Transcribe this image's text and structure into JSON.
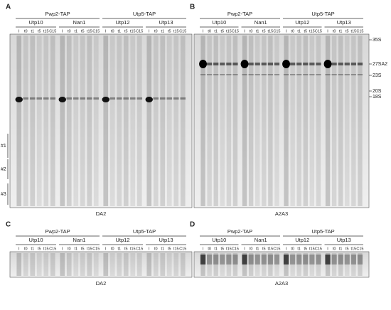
{
  "panels": [
    {
      "letter": "A",
      "groups": [
        "Pwp2-TAP",
        "Utp5-TAP"
      ],
      "subgroups": [
        {
          "name": "Utp10",
          "lanes": [
            "I",
            "t0",
            "t1",
            "t5",
            "t15",
            "C15"
          ]
        },
        {
          "name": "Nan1",
          "lanes": [
            "I",
            "t0",
            "t1",
            "t5",
            "t15",
            "C15"
          ]
        },
        {
          "name": "Utp12",
          "lanes": [
            "I",
            "t0",
            "t1",
            "t5",
            "t15",
            "C15"
          ]
        },
        {
          "name": "Utp13",
          "lanes": [
            "I",
            "t0",
            "t1",
            "t5",
            "t15",
            "C15"
          ]
        }
      ],
      "caption": "DA2",
      "side_labels": [
        "#1",
        "#2",
        "#3"
      ]
    },
    {
      "letter": "B",
      "groups": [
        "Pwp2-TAP",
        "Utp5-TAP"
      ],
      "subgroups": [
        {
          "name": "Utp10",
          "lanes": [
            "I",
            "t0",
            "t1",
            "t5",
            "t15",
            "C15"
          ]
        },
        {
          "name": "Nan1",
          "lanes": [
            "I",
            "t0",
            "t1",
            "t5",
            "t15",
            "C15"
          ]
        },
        {
          "name": "Utp12",
          "lanes": [
            "I",
            "t0",
            "t1",
            "t5",
            "t15",
            "C15"
          ]
        },
        {
          "name": "Utp13",
          "lanes": [
            "I",
            "t0",
            "t1",
            "t5",
            "t15",
            "C15"
          ]
        }
      ],
      "caption": "A2A3",
      "markers": [
        "35S",
        "27SA2",
        "23S",
        "20S",
        "18S"
      ]
    },
    {
      "letter": "C",
      "groups": [
        "Pwp2-TAP",
        "Utp5-TAP"
      ],
      "subgroups": [
        {
          "name": "Utp10",
          "lanes": [
            "I",
            "t0",
            "t1",
            "t5",
            "t15",
            "C15"
          ]
        },
        {
          "name": "Nan1",
          "lanes": [
            "I",
            "t0",
            "t1",
            "t5",
            "t15",
            "C15"
          ]
        },
        {
          "name": "Utp12",
          "lanes": [
            "I",
            "t0",
            "t1",
            "t5",
            "t15",
            "C15"
          ]
        },
        {
          "name": "Utp13",
          "lanes": [
            "I",
            "t0",
            "t1",
            "t5",
            "t15",
            "C15"
          ]
        }
      ],
      "caption": "DA2"
    },
    {
      "letter": "D",
      "groups": [
        "Pwp2-TAP",
        "Utp5-TAP"
      ],
      "subgroups": [
        {
          "name": "Utp10",
          "lanes": [
            "I",
            "t0",
            "t1",
            "t5",
            "t15",
            "C15"
          ]
        },
        {
          "name": "Nan1",
          "lanes": [
            "I",
            "t0",
            "t1",
            "t5",
            "t15",
            "C15"
          ]
        },
        {
          "name": "Utp12",
          "lanes": [
            "I",
            "t0",
            "t1",
            "t5",
            "t15",
            "C15"
          ]
        },
        {
          "name": "Utp13",
          "lanes": [
            "I",
            "t0",
            "t1",
            "t5",
            "t15",
            "C15"
          ]
        }
      ],
      "caption": "A2A3"
    }
  ]
}
